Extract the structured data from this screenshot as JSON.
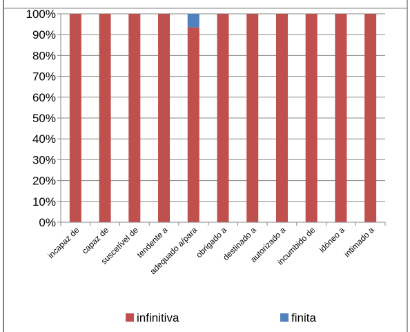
{
  "chart_data": {
    "type": "bar",
    "stacked": true,
    "percent_axis": true,
    "categories": [
      "incapaz de",
      "capaz de",
      "suscetível de",
      "tendente a",
      "adequado a/para",
      "obrigado a",
      "destinado a",
      "autorizado a",
      "incumbido de",
      "idóneo a",
      "intimado a"
    ],
    "series": [
      {
        "name": "infinitiva",
        "color": "#c0504d",
        "values": [
          100,
          100,
          100,
          100,
          93.5,
          100,
          100,
          100,
          100,
          100,
          100
        ]
      },
      {
        "name": "finita",
        "color": "#4f81bd",
        "values": [
          0,
          0,
          0,
          0,
          6.5,
          0,
          0,
          0,
          0,
          0,
          0
        ]
      }
    ],
    "yticks": [
      "0%",
      "10%",
      "20%",
      "30%",
      "40%",
      "50%",
      "60%",
      "70%",
      "80%",
      "90%",
      "100%"
    ],
    "ylim": [
      0,
      100
    ],
    "grid": true,
    "legend_position": "bottom",
    "title": "",
    "xlabel": "",
    "ylabel": ""
  }
}
